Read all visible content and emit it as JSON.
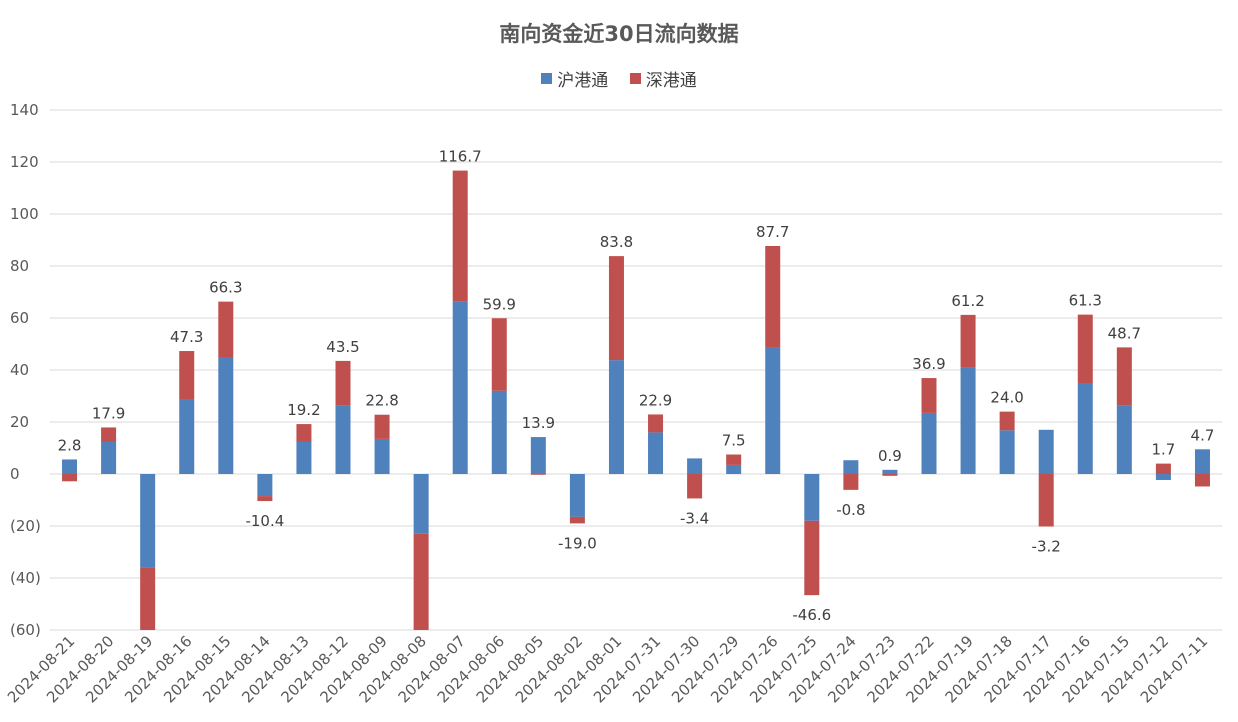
{
  "chart_data": {
    "type": "bar",
    "stacked": true,
    "title": "南向资金近30日流向数据",
    "xlabel": "",
    "ylabel": "",
    "ylim": [
      -60,
      140
    ],
    "y_ticks": [
      140,
      120,
      100,
      80,
      60,
      40,
      20,
      0,
      -20,
      -40,
      -60
    ],
    "y_tick_labels": [
      "140",
      "120",
      "100",
      "80",
      "60",
      "40",
      "20",
      "0",
      "(20)",
      "(40)",
      "(60)"
    ],
    "negative_tick_color": "#c00000",
    "legend_position": "top-center",
    "grid": true,
    "categories": [
      "2024-08-21",
      "2024-08-20",
      "2024-08-19",
      "2024-08-16",
      "2024-08-15",
      "2024-08-14",
      "2024-08-13",
      "2024-08-12",
      "2024-08-09",
      "2024-08-08",
      "2024-08-07",
      "2024-08-06",
      "2024-08-05",
      "2024-08-02",
      "2024-08-01",
      "2024-07-31",
      "2024-07-30",
      "2024-07-29",
      "2024-07-26",
      "2024-07-25",
      "2024-07-24",
      "2024-07-23",
      "2024-07-22",
      "2024-07-19",
      "2024-07-18",
      "2024-07-17",
      "2024-07-16",
      "2024-07-15",
      "2024-07-12",
      "2024-07-11"
    ],
    "series": [
      {
        "name": "沪港通",
        "color": "#4f81bd",
        "values": [
          5.6,
          12.5,
          -36.0,
          28.5,
          45.0,
          -8.5,
          12.5,
          26.5,
          13.5,
          -23.0,
          66.5,
          32.0,
          14.2,
          -16.5,
          43.8,
          16.0,
          6.0,
          3.5,
          48.5,
          -18.0,
          5.3,
          1.6,
          23.5,
          41.0,
          16.8,
          17.0,
          35.0,
          26.5,
          -2.3,
          9.5
        ]
      },
      {
        "name": "深港通",
        "color": "#c0504d",
        "values": [
          -2.8,
          5.4,
          -24.0,
          18.8,
          21.3,
          -1.9,
          6.7,
          17.0,
          9.3,
          -37.0,
          50.2,
          27.9,
          -0.3,
          -2.5,
          40.0,
          6.9,
          -9.4,
          4.0,
          39.2,
          -28.6,
          -6.1,
          -0.7,
          13.4,
          20.2,
          7.2,
          -20.2,
          26.3,
          22.2,
          4.0,
          -4.8
        ]
      }
    ],
    "data_labels": [
      "2.8",
      "17.9",
      "",
      "47.3",
      "66.3",
      "-10.4",
      "19.2",
      "43.5",
      "22.8",
      "",
      "116.7",
      "59.9",
      "13.9",
      "-19.0",
      "83.8",
      "22.9",
      "-3.4",
      "7.5",
      "87.7",
      "-46.6",
      "-0.8",
      "0.9",
      "36.9",
      "61.2",
      "24.0",
      "-3.2",
      "61.3",
      "48.7",
      "1.7",
      "4.7"
    ],
    "totals": [
      2.8,
      17.9,
      -60.0,
      47.3,
      66.3,
      -10.4,
      19.2,
      43.5,
      22.8,
      -60.0,
      116.7,
      59.9,
      13.9,
      -19.0,
      83.8,
      22.9,
      -3.4,
      7.5,
      87.7,
      -46.6,
      -0.8,
      0.9,
      36.9,
      61.2,
      24.0,
      -3.2,
      61.3,
      48.7,
      1.7,
      4.7
    ]
  }
}
